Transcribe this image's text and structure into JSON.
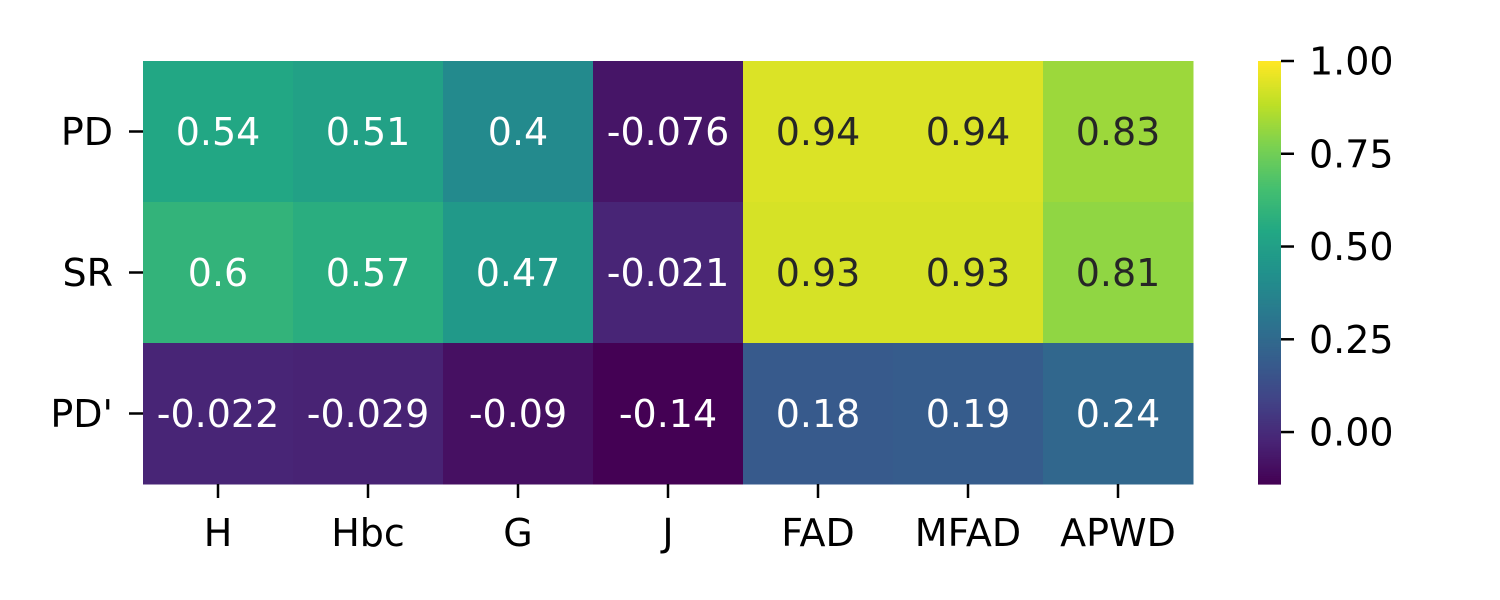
{
  "chart_data": {
    "type": "heatmap",
    "title": "",
    "xlabel": "",
    "ylabel": "",
    "rows": [
      "PD",
      "SR",
      "PD'"
    ],
    "columns": [
      "H",
      "Hbc",
      "G",
      "J",
      "FAD",
      "MFAD",
      "APWD"
    ],
    "values": [
      [
        0.54,
        0.51,
        0.4,
        -0.076,
        0.94,
        0.94,
        0.83
      ],
      [
        0.6,
        0.57,
        0.47,
        -0.021,
        0.93,
        0.93,
        0.81
      ],
      [
        -0.022,
        -0.029,
        -0.09,
        -0.14,
        0.18,
        0.19,
        0.24
      ]
    ],
    "cell_labels": [
      [
        "0.54",
        "0.51",
        "0.4",
        "-0.076",
        "0.94",
        "0.94",
        "0.83"
      ],
      [
        "0.6",
        "0.57",
        "0.47",
        "-0.021",
        "0.93",
        "0.93",
        "0.81"
      ],
      [
        "-0.022",
        "-0.029",
        "-0.09",
        "-0.14",
        "0.18",
        "0.19",
        "0.24"
      ]
    ],
    "colormap": "viridis",
    "vmin": -0.14,
    "vmax": 1.0,
    "colorbar": {
      "ticks": [
        0.0,
        0.25,
        0.5,
        0.75,
        1.0
      ],
      "tick_labels": [
        "0.00",
        "0.25",
        "0.50",
        "0.75",
        "1.00"
      ],
      "position": "right"
    },
    "annotation_colors": {
      "light": "#ffffff",
      "dark": "#262626"
    }
  }
}
